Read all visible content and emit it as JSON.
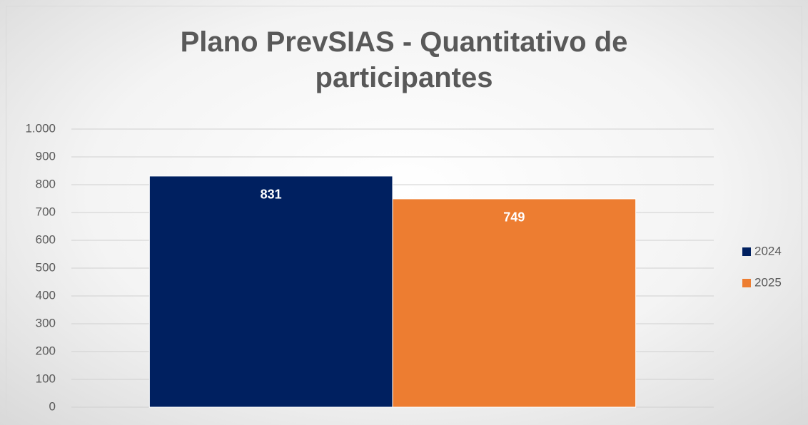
{
  "chart_data": {
    "type": "bar",
    "title": "Plano PrevSIAS - Quantitativo de participantes",
    "categories": [
      null
    ],
    "series": [
      {
        "name": "2024",
        "color": "#002060",
        "values": [
          831
        ]
      },
      {
        "name": "2025",
        "color": "#ed7d31",
        "values": [
          749
        ]
      }
    ],
    "ylim": [
      0,
      1000
    ],
    "yticks": [
      0,
      100,
      200,
      300,
      400,
      500,
      600,
      700,
      800,
      900,
      {
        "value": 1000,
        "label": "1.000"
      }
    ],
    "grid": true,
    "legend": "right"
  }
}
